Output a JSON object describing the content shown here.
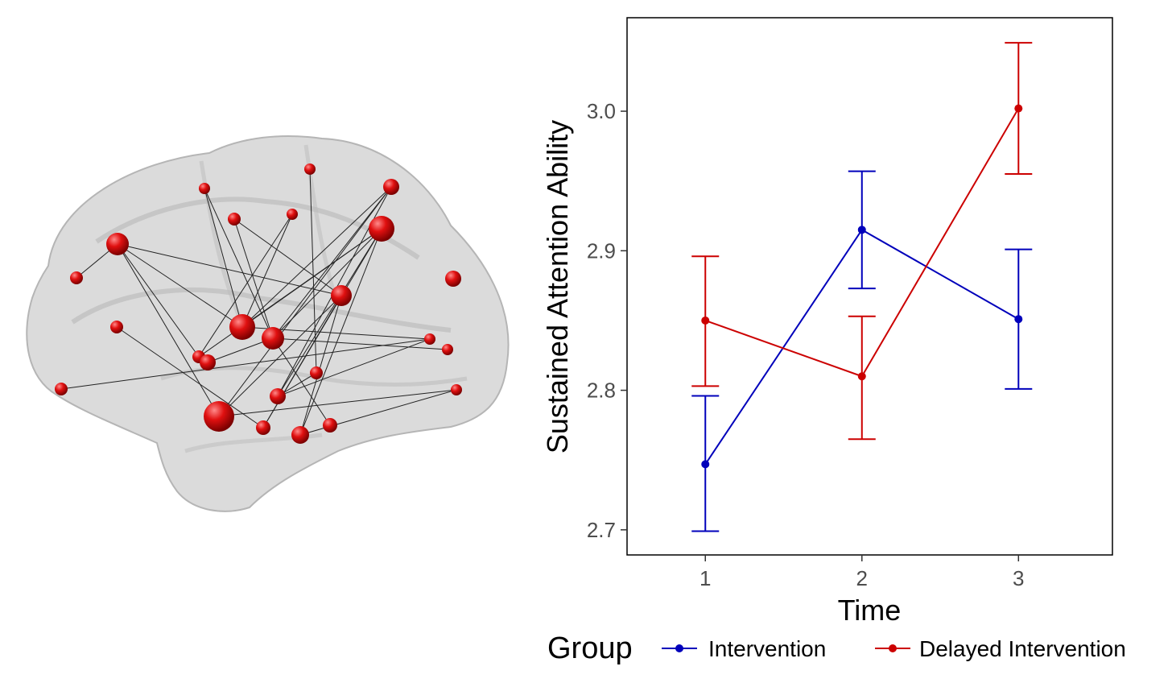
{
  "chart_data": {
    "type": "line",
    "xlabel": "Time",
    "ylabel": "Sustained Attention Ability",
    "x": [
      1,
      2,
      3
    ],
    "x_ticks": [
      "1",
      "2",
      "3"
    ],
    "xlim": [
      0.5,
      3.6
    ],
    "y_ticks": [
      "2.7",
      "2.8",
      "2.9",
      "3.0"
    ],
    "ylim": [
      2.682,
      3.067
    ],
    "grid": false,
    "legend": {
      "title": "Group",
      "placement": "bottom"
    },
    "series": [
      {
        "name": "Intervention",
        "color": "#0000bb",
        "values": [
          2.747,
          2.915,
          2.851
        ],
        "err_low": [
          2.699,
          2.873,
          2.801
        ],
        "err_high": [
          2.796,
          2.957,
          2.901
        ]
      },
      {
        "name": "Delayed Intervention",
        "color": "#cc0000",
        "values": [
          2.85,
          2.81,
          3.002
        ],
        "err_low": [
          2.803,
          2.765,
          2.955
        ],
        "err_high": [
          2.896,
          2.853,
          3.049
        ]
      }
    ]
  }
}
